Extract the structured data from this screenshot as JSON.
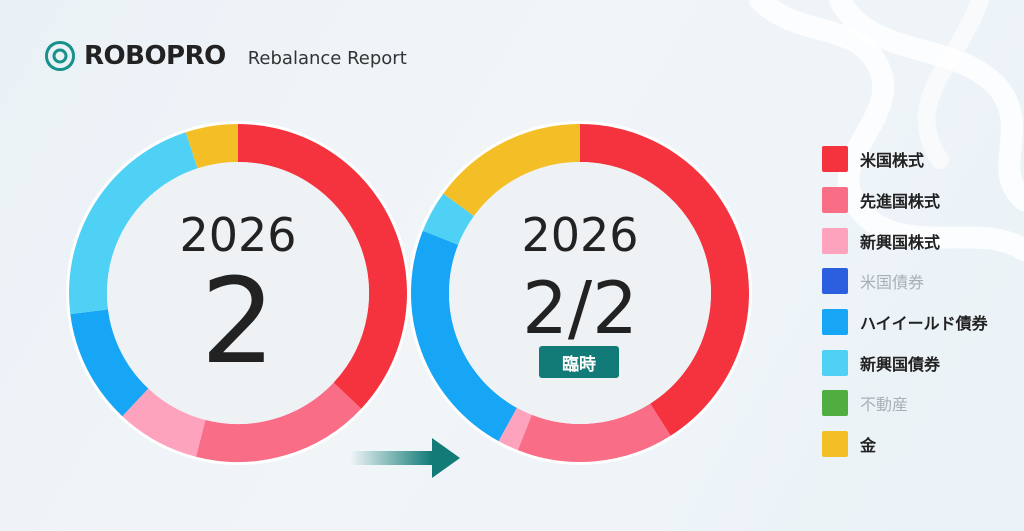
{
  "header": {
    "brand": "ROBOPRO",
    "report_title": "Rebalance Report"
  },
  "old_period": {
    "year": "2026",
    "month": "2"
  },
  "new_period": {
    "year": "2026",
    "date": "2/2",
    "badge": "臨時"
  },
  "legend": [
    {
      "label": "米国株式",
      "color": "#f5333f",
      "faded": false
    },
    {
      "label": "先進国株式",
      "color": "#f96e86",
      "faded": false
    },
    {
      "label": "新興国株式",
      "color": "#fda3bd",
      "faded": false
    },
    {
      "label": "米国債券",
      "color": "#2b5fe0",
      "faded": true
    },
    {
      "label": "ハイイールド債券",
      "color": "#17a6f5",
      "faded": false
    },
    {
      "label": "新興国債券",
      "color": "#4fd1f5",
      "faded": false
    },
    {
      "label": "不動産",
      "color": "#4fae3f",
      "faded": true
    },
    {
      "label": "金",
      "color": "#f4bf26",
      "faded": false
    }
  ],
  "chart_data": [
    {
      "type": "pie",
      "title": "2026 2",
      "categories": [
        "米国株式",
        "先進国株式",
        "新興国株式",
        "ハイイールド債券",
        "新興国債券",
        "金"
      ],
      "values": [
        37,
        17,
        8,
        11,
        22,
        5
      ]
    },
    {
      "type": "pie",
      "title": "2026 2/2",
      "categories": [
        "米国株式",
        "先進国株式",
        "新興国株式",
        "ハイイールド債券",
        "新興国債券",
        "金"
      ],
      "values": [
        41,
        15,
        2,
        23,
        4,
        15
      ]
    }
  ]
}
